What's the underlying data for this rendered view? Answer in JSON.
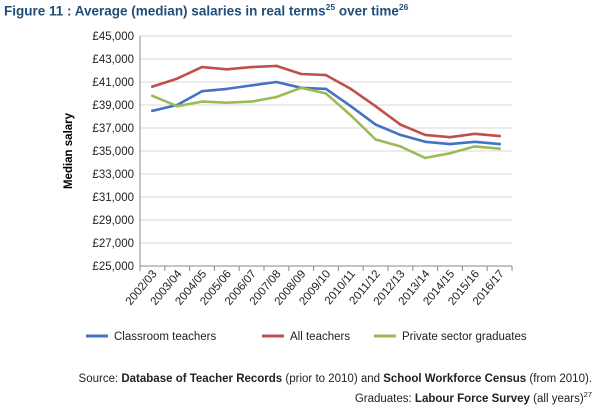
{
  "figure": {
    "title": "Figure 11 : Average (median) salaries in real terms",
    "title_ref1": "25",
    "title_mid": " over time",
    "title_ref2": "26"
  },
  "source": {
    "line1_prefix": "Source: ",
    "line1_bold1": "Database of Teacher Records",
    "line1_mid": " (prior to 2010) and ",
    "line1_bold2": "School Workforce Census",
    "line1_suffix": " (from 2010).",
    "line2_prefix": "Graduates: ",
    "line2_bold": "Labour Force Survey",
    "line2_suffix": " (all years)",
    "line2_ref": "27"
  },
  "chart_data": {
    "type": "line",
    "title": "Average (median) salaries in real terms over time",
    "ylabel": "Median salary",
    "xlabel": "",
    "ylim": [
      25000,
      45000
    ],
    "y_ticks": [
      "£25,000",
      "£27,000",
      "£29,000",
      "£31,000",
      "£33,000",
      "£35,000",
      "£37,000",
      "£39,000",
      "£41,000",
      "£43,000",
      "£45,000"
    ],
    "grid": true,
    "legend_position": "bottom",
    "categories": [
      "2002/03",
      "2003/04",
      "2004/05",
      "2005/06",
      "2006/07",
      "2007/08",
      "2008/09",
      "2009/10",
      "2010/11",
      "2011/12",
      "2012/13",
      "2013/14",
      "2014/15",
      "2015/16",
      "2016/17"
    ],
    "series": [
      {
        "name": "Classroom teachers",
        "color": "#4472c4",
        "values": [
          38500,
          39000,
          40200,
          40400,
          40700,
          41000,
          40500,
          40400,
          38900,
          37300,
          36400,
          35800,
          35600,
          35800,
          35600
        ]
      },
      {
        "name": "All teachers",
        "color": "#c0504d",
        "values": [
          40600,
          41300,
          42300,
          42100,
          42300,
          42400,
          41700,
          41600,
          40400,
          38900,
          37300,
          36400,
          36200,
          36500,
          36300
        ]
      },
      {
        "name": "Private sector graduates",
        "color": "#9bbb59",
        "values": [
          39800,
          38900,
          39300,
          39200,
          39300,
          39700,
          40500,
          40000,
          38100,
          36000,
          35400,
          34400,
          34800,
          35400,
          35200
        ]
      }
    ]
  }
}
